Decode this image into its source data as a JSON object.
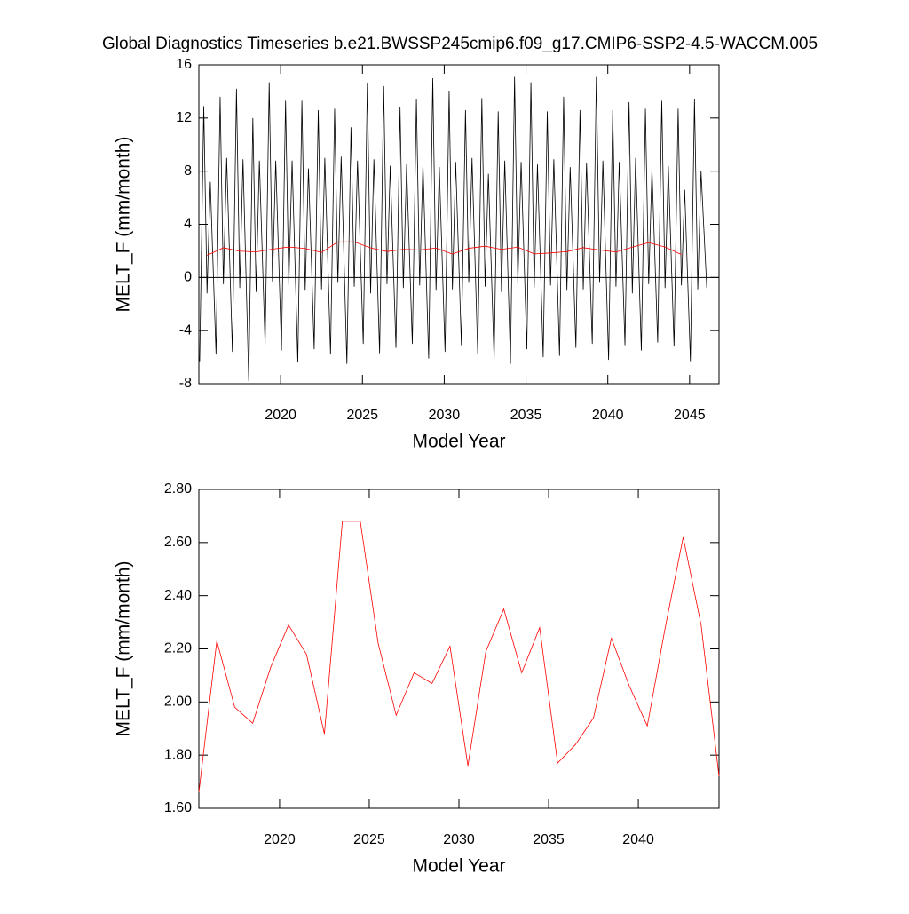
{
  "chart_data": [
    {
      "type": "line",
      "title": "Global Diagnostics Timeseries b.e21.BWSSP245cmip6.f09_g17.CMIP6-SSP2-4.5-WACCM.005",
      "x_label": "Model Year",
      "y_label": "MELT_F (mm/month)",
      "xlim": [
        2015,
        2046.8
      ],
      "ylim": [
        -8,
        16
      ],
      "xticks": [
        2020,
        2025,
        2030,
        2035,
        2040,
        2045
      ],
      "yticks": [
        -8,
        -4,
        0,
        4,
        8,
        12,
        16
      ],
      "zero_line": true,
      "series": [
        {
          "color": "#000000",
          "x": [
            2015.05,
            2015.3,
            2015.5,
            2015.7,
            2016.05,
            2016.3,
            2016.5,
            2016.7,
            2017.05,
            2017.3,
            2017.5,
            2017.7,
            2018.05,
            2018.3,
            2018.5,
            2018.7,
            2019.05,
            2019.3,
            2019.5,
            2019.7,
            2020.05,
            2020.3,
            2020.5,
            2020.7,
            2021.05,
            2021.3,
            2021.5,
            2021.7,
            2022.05,
            2022.3,
            2022.5,
            2022.7,
            2023.05,
            2023.3,
            2023.5,
            2023.7,
            2024.05,
            2024.3,
            2024.5,
            2024.7,
            2025.05,
            2025.3,
            2025.5,
            2025.7,
            2026.05,
            2026.3,
            2026.5,
            2026.7,
            2027.05,
            2027.3,
            2027.5,
            2027.7,
            2028.05,
            2028.3,
            2028.5,
            2028.7,
            2029.05,
            2029.3,
            2029.5,
            2029.7,
            2030.05,
            2030.3,
            2030.5,
            2030.7,
            2031.05,
            2031.3,
            2031.5,
            2031.7,
            2032.05,
            2032.3,
            2032.5,
            2032.7,
            2033.05,
            2033.3,
            2033.5,
            2033.7,
            2034.05,
            2034.3,
            2034.5,
            2034.7,
            2035.05,
            2035.3,
            2035.5,
            2035.7,
            2036.05,
            2036.3,
            2036.5,
            2036.7,
            2037.05,
            2037.3,
            2037.5,
            2037.7,
            2038.05,
            2038.3,
            2038.5,
            2038.7,
            2039.05,
            2039.3,
            2039.5,
            2039.7,
            2040.05,
            2040.3,
            2040.5,
            2040.7,
            2041.05,
            2041.3,
            2041.5,
            2041.7,
            2042.05,
            2042.3,
            2042.5,
            2042.7,
            2043.05,
            2043.3,
            2043.5,
            2043.7,
            2044.05,
            2044.3,
            2044.5,
            2044.7,
            2045.05,
            2045.3,
            2045.5,
            2045.7,
            2046.05
          ],
          "values": [
            -6.3,
            12.9,
            -1.2,
            7.2,
            -5.8,
            13.6,
            -0.5,
            9.0,
            -5.6,
            14.2,
            -0.8,
            8.9,
            -7.8,
            12.0,
            -1.1,
            8.8,
            -5.1,
            14.7,
            -0.3,
            8.8,
            -5.5,
            13.3,
            -0.6,
            8.8,
            -6.4,
            13.3,
            -1.0,
            8.2,
            -5.4,
            12.6,
            -0.9,
            9.0,
            -5.8,
            12.7,
            -0.4,
            9.1,
            -6.5,
            11.3,
            -0.7,
            8.8,
            -5.0,
            14.6,
            -1.2,
            8.9,
            -5.7,
            14.4,
            -0.5,
            8.4,
            -5.3,
            12.8,
            -0.8,
            8.5,
            -5.0,
            13.4,
            -0.6,
            8.6,
            -6.1,
            15.0,
            -1.0,
            8.3,
            -5.6,
            14.0,
            -0.9,
            8.7,
            -5.1,
            12.6,
            -0.4,
            9.0,
            -5.8,
            13.5,
            -0.7,
            7.8,
            -6.2,
            12.5,
            -1.1,
            8.8,
            -6.5,
            15.1,
            -0.5,
            8.7,
            -5.4,
            14.7,
            -0.8,
            8.5,
            -6.0,
            12.5,
            -0.6,
            8.9,
            -5.9,
            13.6,
            -1.0,
            8.3,
            -5.3,
            12.6,
            -0.9,
            8.6,
            -5.0,
            15.1,
            -0.4,
            8.8,
            -6.2,
            12.6,
            -0.7,
            8.7,
            -5.1,
            13.2,
            -1.2,
            9.0,
            -5.5,
            12.7,
            -0.5,
            8.2,
            -4.9,
            13.3,
            -0.8,
            8.4,
            -5.2,
            12.7,
            -0.6,
            6.6,
            -6.3,
            13.4,
            -0.9,
            8.0,
            -0.8
          ]
        },
        {
          "color": "#ff0000",
          "x": [
            2015.5,
            2016.5,
            2017.5,
            2018.5,
            2019.5,
            2020.5,
            2021.5,
            2022.5,
            2023.5,
            2024.5,
            2025.5,
            2026.5,
            2027.5,
            2028.5,
            2029.5,
            2030.5,
            2031.5,
            2032.5,
            2033.5,
            2034.5,
            2035.5,
            2036.5,
            2037.5,
            2038.5,
            2039.5,
            2040.5,
            2041.5,
            2042.5,
            2043.5,
            2044.5
          ],
          "values": [
            1.66,
            2.23,
            1.98,
            1.92,
            2.13,
            2.29,
            2.18,
            1.88,
            2.68,
            2.68,
            2.22,
            1.95,
            2.11,
            2.07,
            2.21,
            1.76,
            2.19,
            2.35,
            2.11,
            2.28,
            1.77,
            1.84,
            1.94,
            2.24,
            2.06,
            1.91,
            2.28,
            2.62,
            2.29,
            1.72
          ]
        }
      ]
    },
    {
      "type": "line",
      "x_label": "Model Year",
      "y_label": "MELT_F (mm/month)",
      "xlim": [
        2015.5,
        2044.5
      ],
      "ylim": [
        1.6,
        2.8
      ],
      "xticks": [
        2020,
        2025,
        2030,
        2035,
        2040
      ],
      "yticks": [
        {
          "value": 1.6,
          "label": "1.60"
        },
        {
          "value": 1.8,
          "label": "1.80"
        },
        {
          "value": 2.0,
          "label": "2.00"
        },
        {
          "value": 2.2,
          "label": "2.20"
        },
        {
          "value": 2.4,
          "label": "2.40"
        },
        {
          "value": 2.6,
          "label": "2.60"
        },
        {
          "value": 2.8,
          "label": "2.80"
        }
      ],
      "series": [
        {
          "color": "#ff0000",
          "x": [
            2015.5,
            2016.5,
            2017.5,
            2018.5,
            2019.5,
            2020.5,
            2021.5,
            2022.5,
            2023.5,
            2024.5,
            2025.5,
            2026.5,
            2027.5,
            2028.5,
            2029.5,
            2030.5,
            2031.5,
            2032.5,
            2033.5,
            2034.5,
            2035.5,
            2036.5,
            2037.5,
            2038.5,
            2039.5,
            2040.5,
            2041.5,
            2042.5,
            2043.5,
            2044.5
          ],
          "values": [
            1.66,
            2.23,
            1.98,
            1.92,
            2.13,
            2.29,
            2.18,
            1.88,
            2.68,
            2.68,
            2.22,
            1.95,
            2.11,
            2.07,
            2.21,
            1.76,
            2.19,
            2.35,
            2.11,
            2.28,
            1.77,
            1.84,
            1.94,
            2.24,
            2.06,
            1.91,
            2.28,
            2.62,
            2.29,
            1.72
          ]
        }
      ]
    }
  ]
}
